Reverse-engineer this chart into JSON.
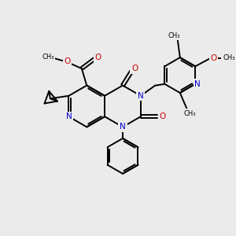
{
  "bg_color": "#ebebeb",
  "bond_color": "#000000",
  "N_color": "#0000cc",
  "O_color": "#cc0000",
  "C_color": "#000000",
  "line_width": 1.4,
  "figsize": [
    3.0,
    3.0
  ],
  "dpi": 100,
  "xlim": [
    0,
    10
  ],
  "ylim": [
    0,
    10
  ]
}
